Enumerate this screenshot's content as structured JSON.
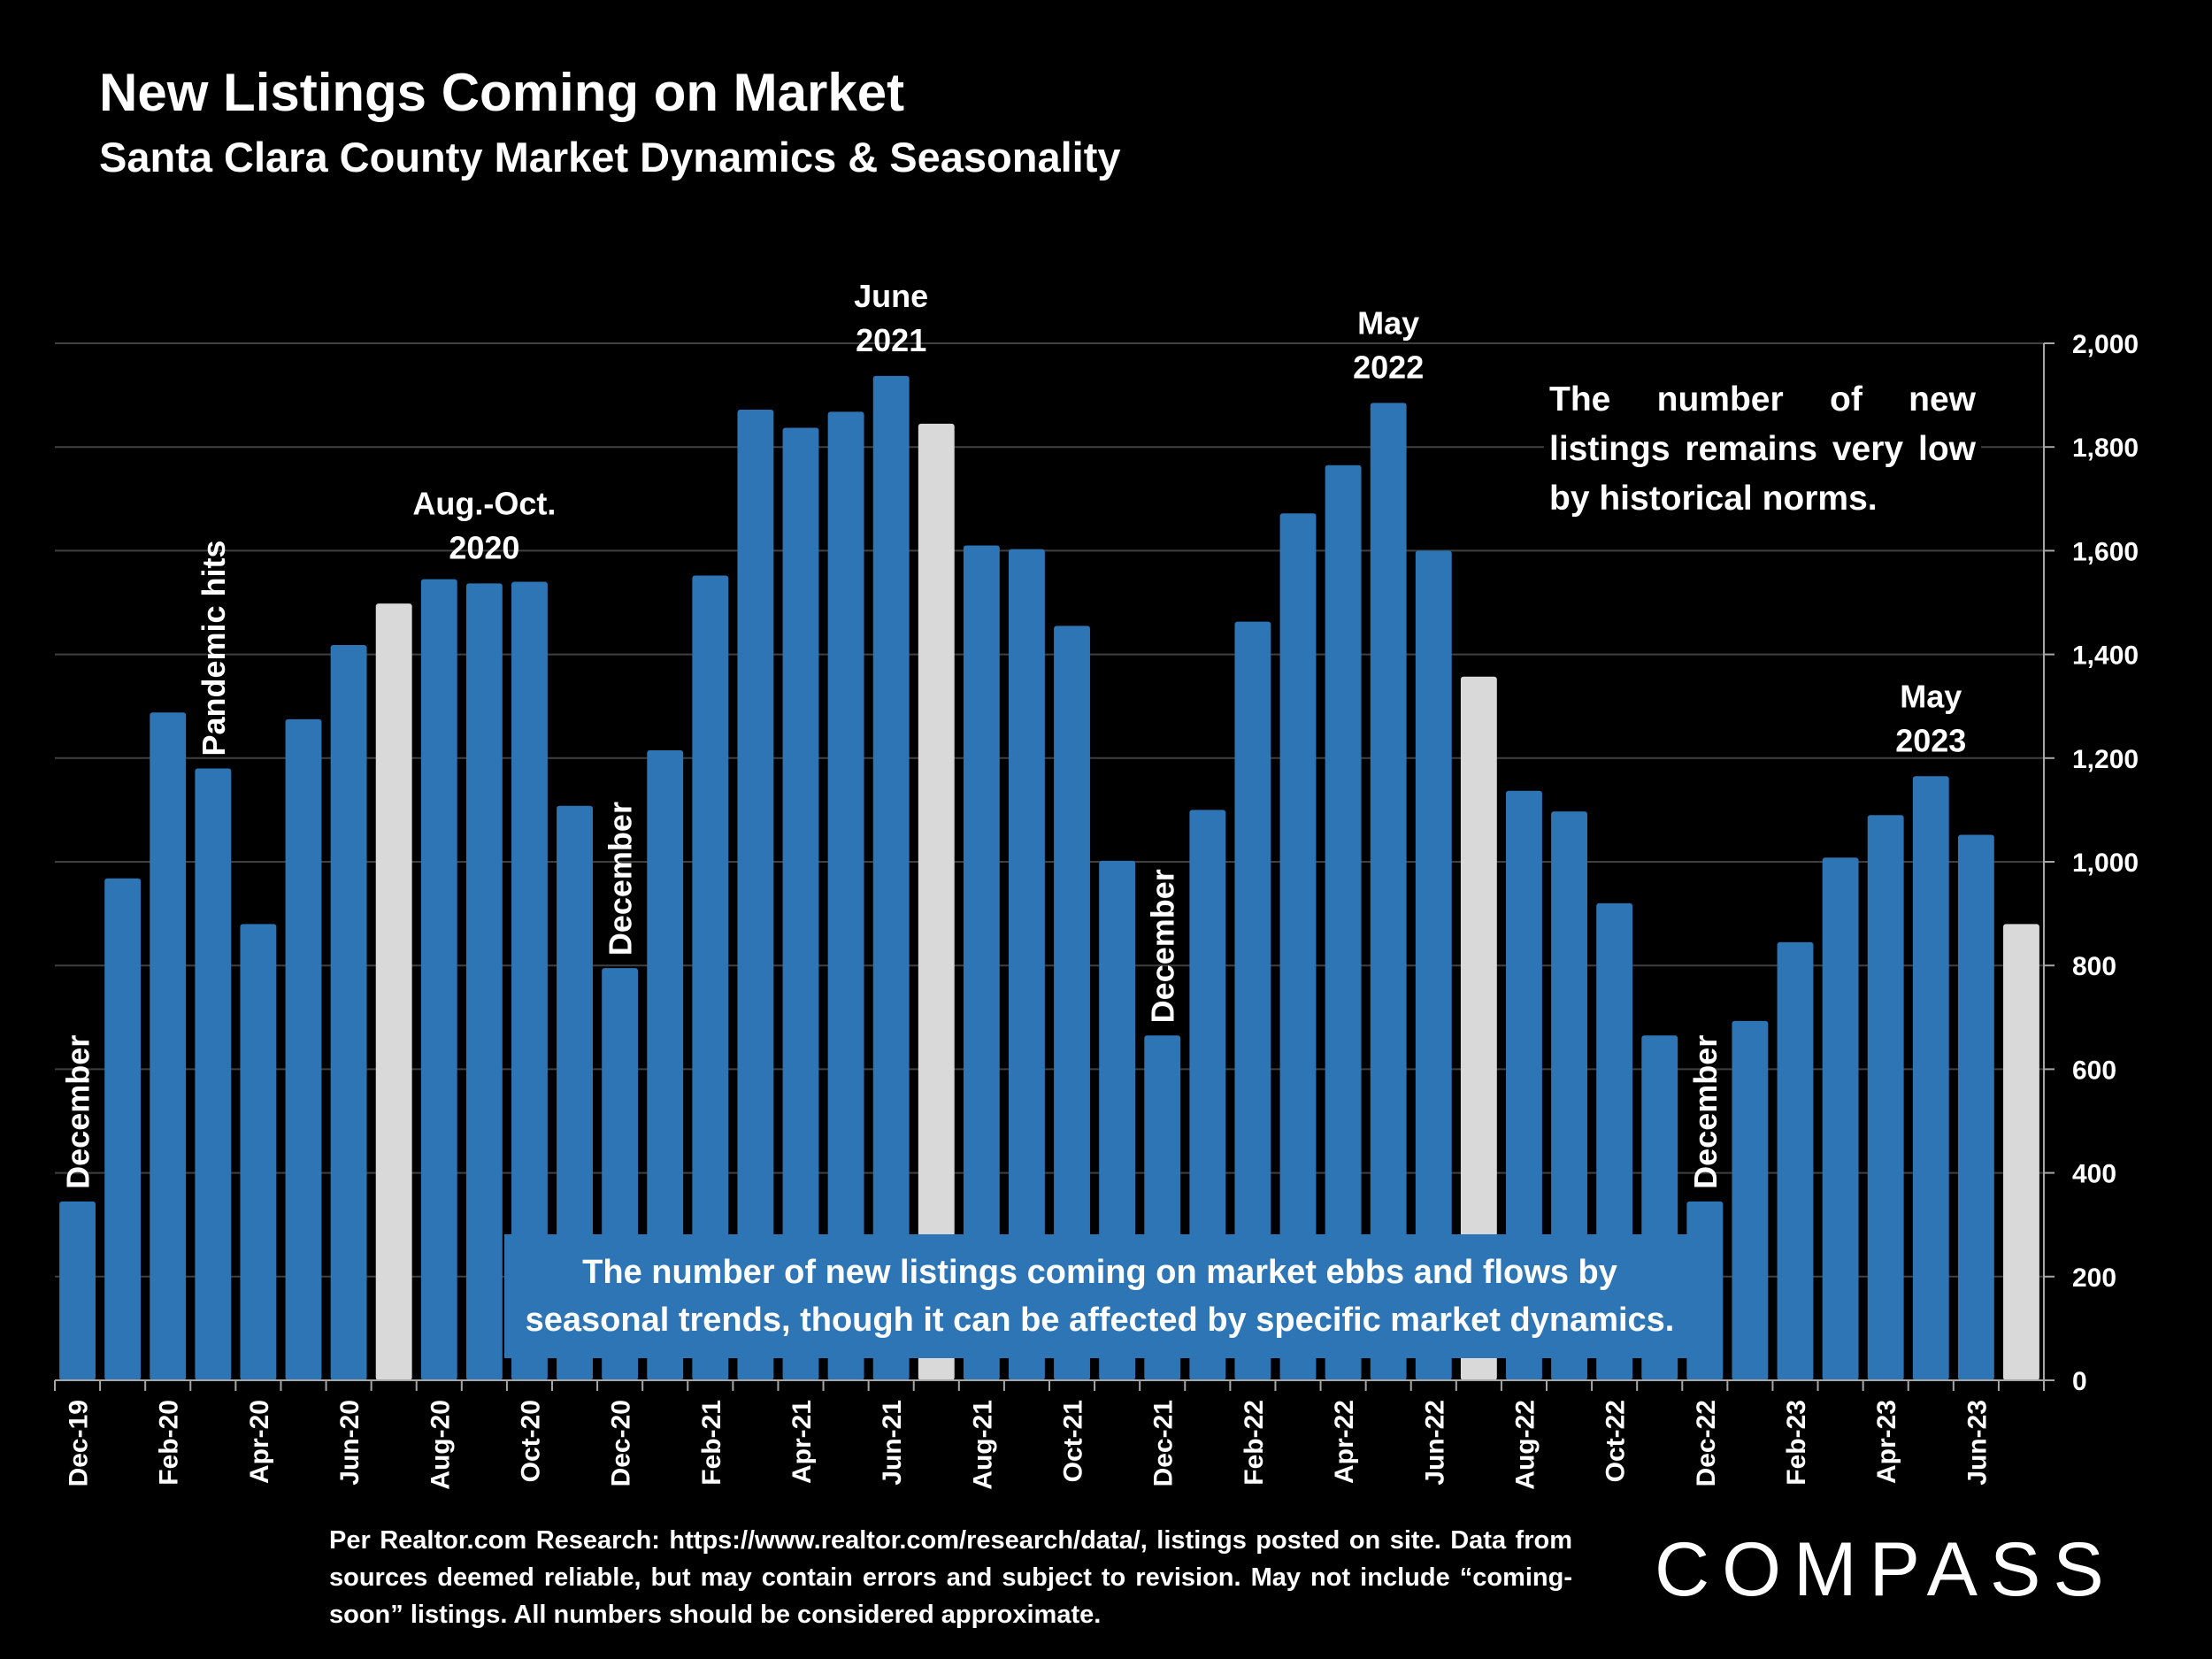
{
  "title": "New Listings Coming on Market",
  "subtitle": "Santa Clara County Market Dynamics & Seasonality",
  "chart_data": {
    "type": "bar",
    "categories": [
      "Dec-19",
      "Jan-20",
      "Feb-20",
      "Mar-20",
      "Apr-20",
      "May-20",
      "Jun-20",
      "Jul-20",
      "Aug-20",
      "Sep-20",
      "Oct-20",
      "Nov-20",
      "Dec-20",
      "Jan-21",
      "Feb-21",
      "Mar-21",
      "Apr-21",
      "May-21",
      "Jun-21",
      "Jul-21",
      "Aug-21",
      "Sep-21",
      "Oct-21",
      "Nov-21",
      "Dec-21",
      "Jan-22",
      "Feb-22",
      "Mar-22",
      "Apr-22",
      "May-22",
      "Jun-22",
      "Jul-22",
      "Aug-22",
      "Sep-22",
      "Oct-22",
      "Nov-22",
      "Dec-22",
      "Jan-23",
      "Feb-23",
      "Mar-23",
      "Apr-23",
      "May-23",
      "Jun-23",
      "Jul-23"
    ],
    "tick_labels": [
      "Dec-19",
      "",
      "Feb-20",
      "",
      "Apr-20",
      "",
      "Jun-20",
      "",
      "Aug-20",
      "",
      "Oct-20",
      "",
      "Dec-20",
      "",
      "Feb-21",
      "",
      "Apr-21",
      "",
      "Jun-21",
      "",
      "Aug-21",
      "",
      "Oct-21",
      "",
      "Dec-21",
      "",
      "Feb-22",
      "",
      "Apr-22",
      "",
      "Jun-22",
      "",
      "Aug-22",
      "",
      "Oct-22",
      "",
      "Dec-22",
      "",
      "Feb-23",
      "",
      "Apr-23",
      "",
      "Jun-23",
      ""
    ],
    "values": [
      345,
      968,
      1288,
      1180,
      880,
      1275,
      1418,
      1498,
      1545,
      1537,
      1540,
      1108,
      795,
      1215,
      1552,
      1872,
      1837,
      1868,
      1937,
      1845,
      1610,
      1603,
      1455,
      1002,
      665,
      1100,
      1463,
      1672,
      1765,
      1885,
      1600,
      1357,
      1137,
      1097,
      920,
      665,
      345,
      693,
      845,
      1008,
      1090,
      1165,
      1052,
      880
    ],
    "highlight_indices": [
      7,
      19,
      31,
      43
    ],
    "colors": {
      "bar": "#2e75b6",
      "highlight": "#d9d9d9",
      "grid": "#404040",
      "axis": "#a6a6a6",
      "text": "#ffffff"
    },
    "ylim": [
      0,
      2000
    ],
    "yticks": [
      0,
      200,
      400,
      600,
      800,
      1000,
      1200,
      1400,
      1600,
      1800,
      2000
    ],
    "ytick_labels": [
      "0",
      "200",
      "400",
      "600",
      "800",
      "1,000",
      "1,200",
      "1,400",
      "1,600",
      "1,800",
      "2,000"
    ],
    "y_axis_side": "right",
    "grid": true,
    "xlabel": "",
    "ylabel": "",
    "annotations": [
      {
        "text": "December",
        "index": 0,
        "anchor": "above-bar",
        "rotated": true
      },
      {
        "text": "Pandemic hits",
        "index": 3,
        "anchor": "above-bar",
        "rotated": true
      },
      {
        "text": "Aug.-Oct. 2020",
        "lines": [
          "Aug.-Oct.",
          "2020"
        ],
        "index": 9,
        "anchor": "above-bar",
        "rotated": false
      },
      {
        "text": "December",
        "index": 12,
        "anchor": "above-bar",
        "rotated": true
      },
      {
        "text": "June 2021",
        "lines": [
          "June",
          "2021"
        ],
        "index": 18,
        "anchor": "above-bar",
        "rotated": false
      },
      {
        "text": "December",
        "index": 24,
        "anchor": "above-bar",
        "rotated": true
      },
      {
        "text": "May 2022",
        "lines": [
          "May",
          "2022"
        ],
        "index": 29,
        "anchor": "above-bar",
        "rotated": false
      },
      {
        "text": "December",
        "index": 36,
        "anchor": "above-bar",
        "rotated": true
      },
      {
        "text": "May 2023",
        "lines": [
          "May",
          "2023"
        ],
        "index": 41,
        "anchor": "above-bar",
        "rotated": false
      }
    ]
  },
  "callout": "The number of new listings coming on market ebbs and flows by seasonal trends, though it can be affected by specific market dynamics.",
  "note": "The number of new listings remains very low by historical norms.",
  "source": "Per Realtor.com Research: https://www.realtor.com/research/data/, listings posted on site. Data from sources deemed reliable, but may contain errors and subject to revision. May not include “coming-soon” listings. All numbers should be considered approximate.",
  "logo": "COMPASS"
}
